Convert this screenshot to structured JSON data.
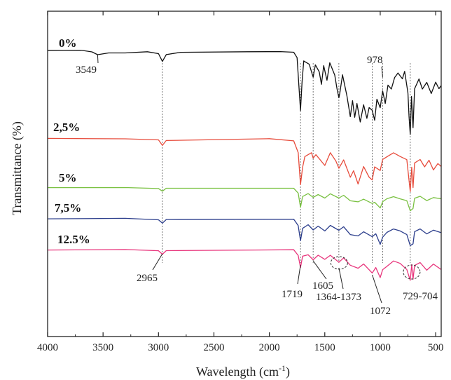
{
  "chart_data": {
    "type": "line",
    "title": "",
    "xlabel": "Wavelength (cm",
    "xlabel_sup": "-1",
    "xlabel_close": ")",
    "ylabel": "Transmittance (%)",
    "xlim": [
      4000,
      450
    ],
    "x_reversed": true,
    "y_ticks_shown": false,
    "grid": false,
    "legend": "inline-labels",
    "x_ticks": [
      4000,
      3500,
      3000,
      2500,
      2000,
      1500,
      1000,
      500
    ],
    "series": [
      {
        "name": "0%",
        "color": "#111111",
        "offset": 0,
        "points": [
          [
            4000,
            0
          ],
          [
            3700,
            0
          ],
          [
            3600,
            -2
          ],
          [
            3549,
            -6
          ],
          [
            3450,
            -3
          ],
          [
            3300,
            -3
          ],
          [
            3100,
            -2
          ],
          [
            3000,
            -5
          ],
          [
            2965,
            -16
          ],
          [
            2930,
            -6
          ],
          [
            2800,
            -3
          ],
          [
            2200,
            -2
          ],
          [
            1900,
            -2
          ],
          [
            1780,
            -3
          ],
          [
            1750,
            -10
          ],
          [
            1730,
            -60
          ],
          [
            1719,
            -85
          ],
          [
            1705,
            -45
          ],
          [
            1690,
            -15
          ],
          [
            1640,
            -20
          ],
          [
            1620,
            -30
          ],
          [
            1605,
            -38
          ],
          [
            1585,
            -20
          ],
          [
            1550,
            -30
          ],
          [
            1530,
            -48
          ],
          [
            1510,
            -22
          ],
          [
            1480,
            -42
          ],
          [
            1455,
            -18
          ],
          [
            1410,
            -35
          ],
          [
            1390,
            -55
          ],
          [
            1373,
            -68
          ],
          [
            1364,
            -60
          ],
          [
            1340,
            -35
          ],
          [
            1300,
            -65
          ],
          [
            1270,
            -95
          ],
          [
            1250,
            -72
          ],
          [
            1230,
            -95
          ],
          [
            1210,
            -75
          ],
          [
            1180,
            -102
          ],
          [
            1150,
            -78
          ],
          [
            1120,
            -97
          ],
          [
            1100,
            -82
          ],
          [
            1072,
            -85
          ],
          [
            1050,
            -100
          ],
          [
            1030,
            -70
          ],
          [
            1000,
            -82
          ],
          [
            978,
            -58
          ],
          [
            955,
            -75
          ],
          [
            930,
            -50
          ],
          [
            900,
            -55
          ],
          [
            870,
            -38
          ],
          [
            840,
            -32
          ],
          [
            800,
            -40
          ],
          [
            780,
            -30
          ],
          [
            750,
            -60
          ],
          [
            740,
            -95
          ],
          [
            729,
            -120
          ],
          [
            718,
            -65
          ],
          [
            704,
            -110
          ],
          [
            690,
            -55
          ],
          [
            650,
            -40
          ],
          [
            620,
            -55
          ],
          [
            580,
            -45
          ],
          [
            540,
            -62
          ],
          [
            500,
            -45
          ],
          [
            470,
            -55
          ],
          [
            450,
            -50
          ]
        ]
      },
      {
        "name": "2,5%",
        "color": "#e74c3c",
        "offset": 126,
        "points": [
          [
            4000,
            0
          ],
          [
            3300,
            0
          ],
          [
            3000,
            -2
          ],
          [
            2965,
            -10
          ],
          [
            2930,
            -3
          ],
          [
            2000,
            0
          ],
          [
            1780,
            -3
          ],
          [
            1740,
            -20
          ],
          [
            1719,
            -65
          ],
          [
            1700,
            -40
          ],
          [
            1680,
            -25
          ],
          [
            1620,
            -20
          ],
          [
            1605,
            -28
          ],
          [
            1580,
            -22
          ],
          [
            1500,
            -38
          ],
          [
            1450,
            -20
          ],
          [
            1400,
            -32
          ],
          [
            1373,
            -42
          ],
          [
            1330,
            -30
          ],
          [
            1270,
            -55
          ],
          [
            1240,
            -45
          ],
          [
            1200,
            -65
          ],
          [
            1150,
            -40
          ],
          [
            1100,
            -55
          ],
          [
            1072,
            -58
          ],
          [
            1050,
            -40
          ],
          [
            1000,
            -45
          ],
          [
            978,
            -30
          ],
          [
            930,
            -25
          ],
          [
            880,
            -20
          ],
          [
            820,
            -25
          ],
          [
            760,
            -30
          ],
          [
            729,
            -75
          ],
          [
            716,
            -40
          ],
          [
            704,
            -70
          ],
          [
            690,
            -35
          ],
          [
            640,
            -30
          ],
          [
            600,
            -40
          ],
          [
            560,
            -30
          ],
          [
            520,
            -45
          ],
          [
            480,
            -35
          ],
          [
            450,
            -40
          ]
        ]
      },
      {
        "name": "5%",
        "color": "#7ac142",
        "offset": 196,
        "points": [
          [
            4000,
            0
          ],
          [
            3300,
            0
          ],
          [
            3000,
            -1
          ],
          [
            2965,
            -5
          ],
          [
            2930,
            -1
          ],
          [
            1780,
            0
          ],
          [
            1740,
            -8
          ],
          [
            1719,
            -28
          ],
          [
            1700,
            -12
          ],
          [
            1650,
            -8
          ],
          [
            1605,
            -14
          ],
          [
            1560,
            -9
          ],
          [
            1500,
            -15
          ],
          [
            1450,
            -9
          ],
          [
            1373,
            -14
          ],
          [
            1330,
            -11
          ],
          [
            1270,
            -18
          ],
          [
            1200,
            -20
          ],
          [
            1150,
            -16
          ],
          [
            1072,
            -22
          ],
          [
            1050,
            -20
          ],
          [
            1000,
            -28
          ],
          [
            978,
            -20
          ],
          [
            940,
            -16
          ],
          [
            880,
            -12
          ],
          [
            820,
            -16
          ],
          [
            760,
            -18
          ],
          [
            729,
            -32
          ],
          [
            704,
            -30
          ],
          [
            690,
            -15
          ],
          [
            640,
            -12
          ],
          [
            580,
            -18
          ],
          [
            520,
            -14
          ],
          [
            450,
            -16
          ]
        ]
      },
      {
        "name": "7,5%",
        "color": "#2c3e8c",
        "offset": 240,
        "points": [
          [
            4000,
            0
          ],
          [
            3300,
            0
          ],
          [
            3000,
            -1
          ],
          [
            2965,
            -6
          ],
          [
            2930,
            -1
          ],
          [
            1780,
            0
          ],
          [
            1740,
            -10
          ],
          [
            1719,
            -32
          ],
          [
            1700,
            -14
          ],
          [
            1650,
            -9
          ],
          [
            1605,
            -16
          ],
          [
            1560,
            -10
          ],
          [
            1500,
            -18
          ],
          [
            1450,
            -10
          ],
          [
            1373,
            -16
          ],
          [
            1330,
            -12
          ],
          [
            1270,
            -22
          ],
          [
            1200,
            -24
          ],
          [
            1150,
            -18
          ],
          [
            1072,
            -26
          ],
          [
            1040,
            -22
          ],
          [
            1000,
            -36
          ],
          [
            978,
            -26
          ],
          [
            940,
            -20
          ],
          [
            880,
            -14
          ],
          [
            820,
            -18
          ],
          [
            760,
            -22
          ],
          [
            729,
            -38
          ],
          [
            704,
            -36
          ],
          [
            690,
            -18
          ],
          [
            640,
            -14
          ],
          [
            580,
            -22
          ],
          [
            520,
            -16
          ],
          [
            450,
            -20
          ]
        ]
      },
      {
        "name": "12.5%",
        "color": "#e8357c",
        "offset": 284,
        "points": [
          [
            4000,
            0
          ],
          [
            3300,
            0
          ],
          [
            3000,
            -1
          ],
          [
            2965,
            -6
          ],
          [
            2930,
            -1
          ],
          [
            1780,
            0
          ],
          [
            1740,
            -8
          ],
          [
            1719,
            -26
          ],
          [
            1700,
            -10
          ],
          [
            1650,
            -8
          ],
          [
            1605,
            -14
          ],
          [
            1560,
            -8
          ],
          [
            1500,
            -14
          ],
          [
            1450,
            -8
          ],
          [
            1373,
            -18
          ],
          [
            1330,
            -12
          ],
          [
            1270,
            -22
          ],
          [
            1200,
            -26
          ],
          [
            1150,
            -20
          ],
          [
            1072,
            -34
          ],
          [
            1040,
            -26
          ],
          [
            1000,
            -40
          ],
          [
            978,
            -28
          ],
          [
            940,
            -24
          ],
          [
            880,
            -16
          ],
          [
            820,
            -20
          ],
          [
            760,
            -28
          ],
          [
            729,
            -44
          ],
          [
            716,
            -22
          ],
          [
            704,
            -42
          ],
          [
            690,
            -22
          ],
          [
            640,
            -18
          ],
          [
            580,
            -30
          ],
          [
            520,
            -20
          ],
          [
            450,
            -28
          ]
        ]
      }
    ],
    "annotations": [
      "3549",
      "978",
      "2965",
      "1719",
      "1605",
      "1364-1373",
      "1072",
      "729-704"
    ],
    "marked_wavenumbers": [
      2965,
      1719,
      1605,
      1373,
      1072,
      978,
      729
    ]
  }
}
